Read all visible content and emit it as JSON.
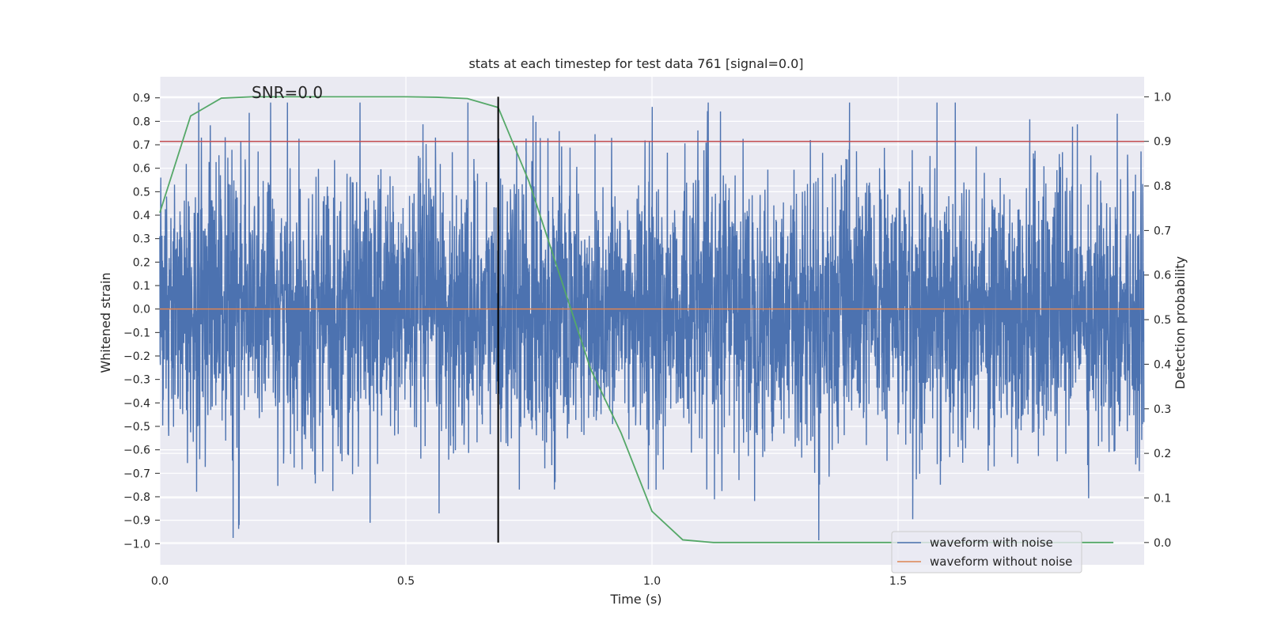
{
  "chart_data": {
    "type": "line",
    "title": "stats at each timestep for test data 761 [signal=0.0]",
    "annotation": "SNR=0.0",
    "xlabel": "Time (s)",
    "ylabel": "Whitened strain",
    "y2label": "Detection probability",
    "xlim": [
      0.0,
      2.0
    ],
    "ylim": [
      -1.09,
      0.99
    ],
    "y2lim": [
      -0.05,
      1.045
    ],
    "xticks": [
      0.0,
      0.5,
      1.0,
      1.5
    ],
    "xtick_labels": [
      "0.0",
      "0.5",
      "1.0",
      "1.5"
    ],
    "yticks": [
      0.9,
      0.8,
      0.7,
      0.6,
      0.5,
      0.4,
      0.3,
      0.2,
      0.1,
      0.0,
      -0.1,
      -0.2,
      -0.3,
      -0.4,
      -0.5,
      -0.6,
      -0.7,
      -0.8,
      -0.9,
      -1.0
    ],
    "ytick_labels": [
      "0.9",
      "0.8",
      "0.7",
      "0.6",
      "0.5",
      "0.4",
      "0.3",
      "0.2",
      "0.1",
      "0.0",
      "−0.1",
      "−0.2",
      "−0.3",
      "−0.4",
      "−0.5",
      "−0.6",
      "−0.7",
      "−0.8",
      "−0.9",
      "−1.0"
    ],
    "y2ticks": [
      1.0,
      0.9,
      0.8,
      0.7,
      0.6,
      0.5,
      0.4,
      0.3,
      0.2,
      0.1,
      0.0
    ],
    "y2tick_labels": [
      "1.0",
      "0.9",
      "0.8",
      "0.7",
      "0.6",
      "0.5",
      "0.4",
      "0.3",
      "0.2",
      "0.1",
      "0.0"
    ],
    "grid": true,
    "legend_position": "lower-right",
    "noisy_series": {
      "name": "waveform with noise",
      "color": "#4c72b0",
      "sample_rate": 2048,
      "duration_s": 2.0,
      "std": 0.29,
      "min": -1.0,
      "max": 0.88
    },
    "clean_series": {
      "name": "waveform without noise",
      "color": "#dd8452",
      "x": [
        0.0,
        2.0
      ],
      "y": [
        0.0,
        0.0
      ]
    },
    "probability_series": {
      "name": "",
      "color": "#55a868",
      "axis": "right",
      "x": [
        0.0,
        0.0625,
        0.125,
        0.1875,
        0.25,
        0.3125,
        0.375,
        0.4375,
        0.5,
        0.5625,
        0.625,
        0.6875,
        0.75,
        0.8125,
        0.875,
        0.9375,
        1.0,
        1.0625,
        1.125,
        1.1875,
        1.25,
        1.3125,
        1.375,
        1.4375,
        1.5,
        1.5625,
        1.625,
        1.6875,
        1.75,
        1.8125,
        1.875,
        1.9375
      ],
      "y": [
        0.74,
        0.957,
        0.997,
        1.0,
        1.0,
        1.0,
        1.0,
        1.0,
        1.0,
        0.999,
        0.996,
        0.976,
        0.81,
        0.6,
        0.39,
        0.245,
        0.07,
        0.006,
        0.0,
        0.0,
        0.0,
        0.0,
        0.0,
        0.0,
        0.0,
        0.0,
        0.0,
        0.0,
        0.0,
        0.0,
        0.0,
        0.0
      ]
    },
    "threshold_line": {
      "color": "#c44e52",
      "axis": "right",
      "value": 0.9
    },
    "marker_line": {
      "color": "#000000",
      "axis": "right",
      "x": 0.6875,
      "y_from": 0.0,
      "y_to": 1.0
    }
  }
}
